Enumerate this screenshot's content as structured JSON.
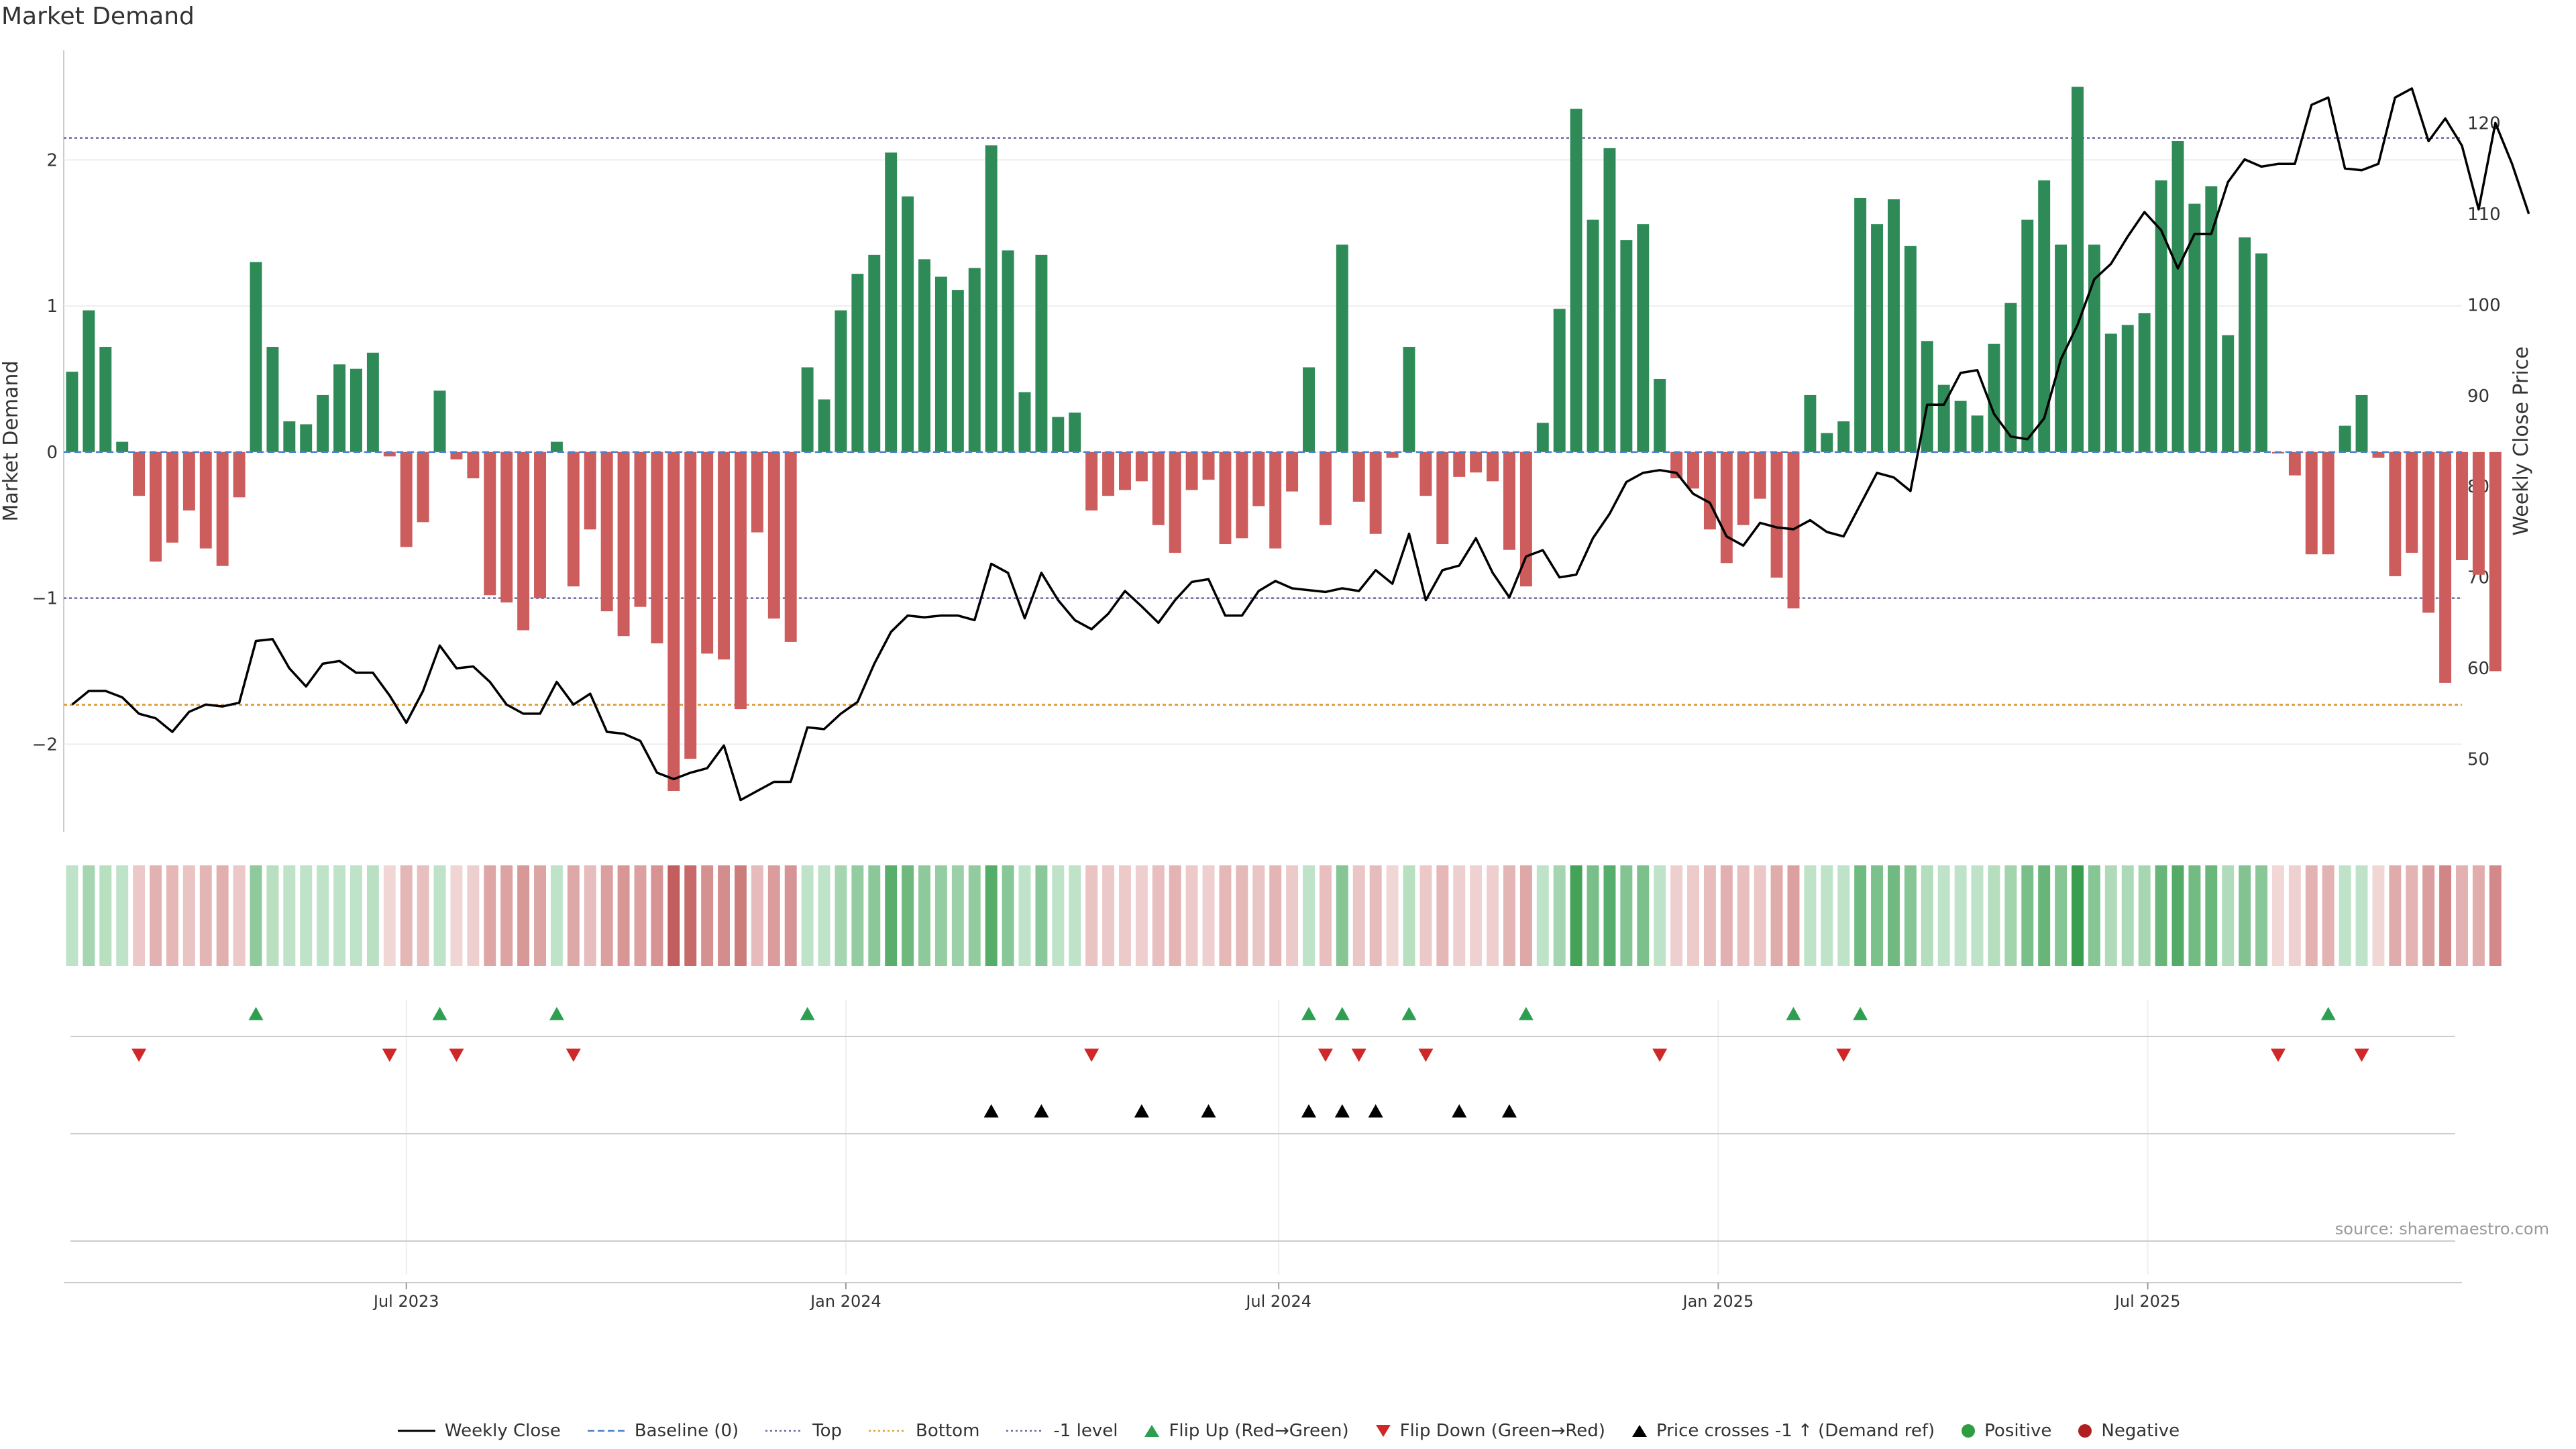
{
  "title": "Market Demand",
  "source": "source: sharemaestro.com",
  "legend": [
    {
      "label": "Weekly Close",
      "kind": "line",
      "color": "#000000",
      "dash": "solid"
    },
    {
      "label": "Baseline (0)",
      "kind": "line",
      "color": "#4a7fd0",
      "dash": "dash"
    },
    {
      "label": "Top",
      "kind": "line",
      "color": "#6a6aa8",
      "dash": "dot"
    },
    {
      "label": "Bottom",
      "kind": "line",
      "color": "#e0a040",
      "dash": "dot"
    },
    {
      "label": "-1 level",
      "kind": "line",
      "color": "#6a6aa8",
      "dash": "dot"
    },
    {
      "label": "Flip Up (Red→Green)",
      "kind": "tri-up",
      "color": "#2e9e50"
    },
    {
      "label": "Flip Down (Green→Red)",
      "kind": "tri-down",
      "color": "#d02828"
    },
    {
      "label": "Price crosses -1 ↑ (Demand ref)",
      "kind": "tri-up",
      "color": "#000000"
    },
    {
      "label": "Positive",
      "kind": "dot",
      "color": "#2e9e40"
    },
    {
      "label": "Negative",
      "kind": "dot",
      "color": "#b02020"
    }
  ],
  "chart_data": {
    "type": "bar",
    "title": "Market Demand",
    "ylabel": "Market Demand",
    "y2label": "Weekly Close Price",
    "ylim": [
      -2.6,
      2.75
    ],
    "y2lim": [
      42,
      128
    ],
    "yticks": [
      -2,
      -1,
      0,
      1,
      2
    ],
    "ytick_labels": [
      "−2",
      "−1",
      "0",
      "1",
      "2"
    ],
    "y2ticks": [
      50,
      60,
      70,
      80,
      90,
      100,
      110,
      120
    ],
    "xlim": [
      0,
      143.5
    ],
    "xticks": [
      {
        "pos": 20.5,
        "label": "Jul 2023"
      },
      {
        "pos": 46.8,
        "label": "Jan 2024"
      },
      {
        "pos": 72.7,
        "label": "Jul 2024"
      },
      {
        "pos": 99.0,
        "label": "Jan 2025"
      },
      {
        "pos": 124.7,
        "label": "Jul 2025"
      }
    ],
    "reference_lines": {
      "top": 2.15,
      "bottom": -1.73,
      "minus_one": -1,
      "baseline": 0
    },
    "colors": {
      "positive": "#2e8b57",
      "negative": "#cd5c5c",
      "price": "#000000",
      "top": "#6a6aa8",
      "bottom": "#e0a040",
      "minus_one": "#6a6aa8",
      "baseline": "#4a7fd0"
    },
    "demand": [
      0.55,
      0.97,
      0.72,
      0.07,
      -0.3,
      -0.75,
      -0.62,
      -0.4,
      -0.66,
      -0.78,
      -0.31,
      1.3,
      0.72,
      0.21,
      0.19,
      0.39,
      0.6,
      0.57,
      0.68,
      -0.03,
      -0.65,
      -0.48,
      0.42,
      -0.05,
      -0.18,
      -0.98,
      -1.03,
      -1.22,
      -1.0,
      0.07,
      -0.92,
      -0.53,
      -1.09,
      -1.26,
      -1.06,
      -1.31,
      -2.32,
      -2.1,
      -1.38,
      -1.42,
      -1.76,
      -0.55,
      -1.14,
      -1.3,
      0.58,
      0.36,
      0.97,
      1.22,
      1.35,
      2.05,
      1.75,
      1.32,
      1.2,
      1.11,
      1.26,
      2.1,
      1.38,
      0.41,
      1.35,
      0.24,
      0.27,
      -0.4,
      -0.3,
      -0.26,
      -0.2,
      -0.5,
      -0.69,
      -0.26,
      -0.19,
      -0.63,
      -0.59,
      -0.37,
      -0.66,
      -0.27,
      0.58,
      -0.5,
      1.42,
      -0.34,
      -0.56,
      -0.04,
      0.72,
      -0.3,
      -0.63,
      -0.17,
      -0.14,
      -0.2,
      -0.67,
      -0.92,
      0.2,
      0.98,
      2.35,
      1.59,
      2.08,
      1.45,
      1.56,
      0.5,
      -0.18,
      -0.25,
      -0.53,
      -0.76,
      -0.5,
      -0.32,
      -0.86,
      -1.07,
      0.39,
      0.13,
      0.21,
      1.74,
      1.56,
      1.73,
      1.41,
      0.76,
      0.46,
      0.35,
      0.25,
      0.74,
      1.02,
      1.59,
      1.86,
      1.42,
      2.5,
      1.42,
      0.81,
      0.87,
      0.95,
      1.86,
      2.13,
      1.7,
      1.82,
      0.8,
      1.47,
      1.36,
      -0.01,
      -0.16,
      -0.7,
      -0.7,
      0.18,
      0.39,
      -0.04,
      -0.85,
      -0.69,
      -1.1,
      -1.58,
      -0.74,
      -0.84,
      -1.5
    ],
    "close": [
      56.0,
      57.5,
      57.5,
      56.8,
      55.0,
      54.5,
      53.0,
      55.2,
      56.0,
      55.8,
      56.2,
      63.0,
      63.2,
      60.0,
      58.0,
      60.5,
      60.8,
      59.5,
      59.5,
      57.0,
      54.0,
      57.5,
      62.5,
      60.0,
      60.2,
      58.5,
      56.0,
      55.0,
      55.0,
      58.5,
      56.0,
      57.2,
      53.0,
      52.8,
      52.0,
      48.5,
      47.8,
      48.5,
      49.0,
      51.5,
      45.5,
      46.5,
      47.5,
      47.5,
      53.5,
      53.3,
      55.0,
      56.3,
      60.5,
      64.0,
      65.8,
      65.6,
      65.8,
      65.8,
      65.3,
      71.5,
      70.5,
      65.5,
      70.5,
      67.5,
      65.3,
      64.3,
      66.0,
      68.5,
      66.8,
      65.0,
      67.5,
      69.5,
      69.8,
      65.8,
      65.8,
      68.5,
      69.6,
      68.8,
      68.6,
      68.4,
      68.8,
      68.5,
      70.8,
      69.3,
      74.8,
      67.5,
      70.8,
      71.3,
      74.3,
      70.5,
      67.8,
      72.3,
      73.0,
      70.0,
      70.3,
      74.3,
      77.0,
      80.5,
      81.5,
      81.8,
      81.5,
      79.2,
      78.2,
      74.5,
      73.5,
      76.0,
      75.5,
      75.3,
      76.3,
      75.0,
      74.5,
      78.0,
      81.5,
      81.0,
      79.5,
      89.0,
      89.0,
      92.5,
      92.8,
      88.0,
      85.5,
      85.2,
      87.5,
      94.0,
      97.8,
      102.8,
      104.5,
      107.5,
      110.2,
      108.2,
      104.0,
      107.8,
      107.8,
      113.5,
      116.0,
      115.2,
      115.5,
      115.5,
      122.0,
      122.8,
      115.0,
      114.8,
      115.5,
      122.8,
      123.8,
      118.0,
      120.5,
      117.5,
      110.5,
      120.0,
      115.5,
      110.0
    ],
    "heat": {
      "positive_scale": [
        0.6,
        2.5
      ],
      "negative_scale": [
        0.0,
        2.4
      ]
    },
    "flip_up_x": [
      11,
      22,
      29,
      44,
      74,
      76,
      80,
      87,
      103,
      107,
      135
    ],
    "flip_down_x": [
      4,
      19,
      23,
      30,
      61,
      75,
      77,
      81,
      95,
      106,
      132,
      137
    ],
    "cross_x": [
      55,
      58,
      64,
      68,
      74,
      76,
      78,
      83,
      86
    ]
  }
}
